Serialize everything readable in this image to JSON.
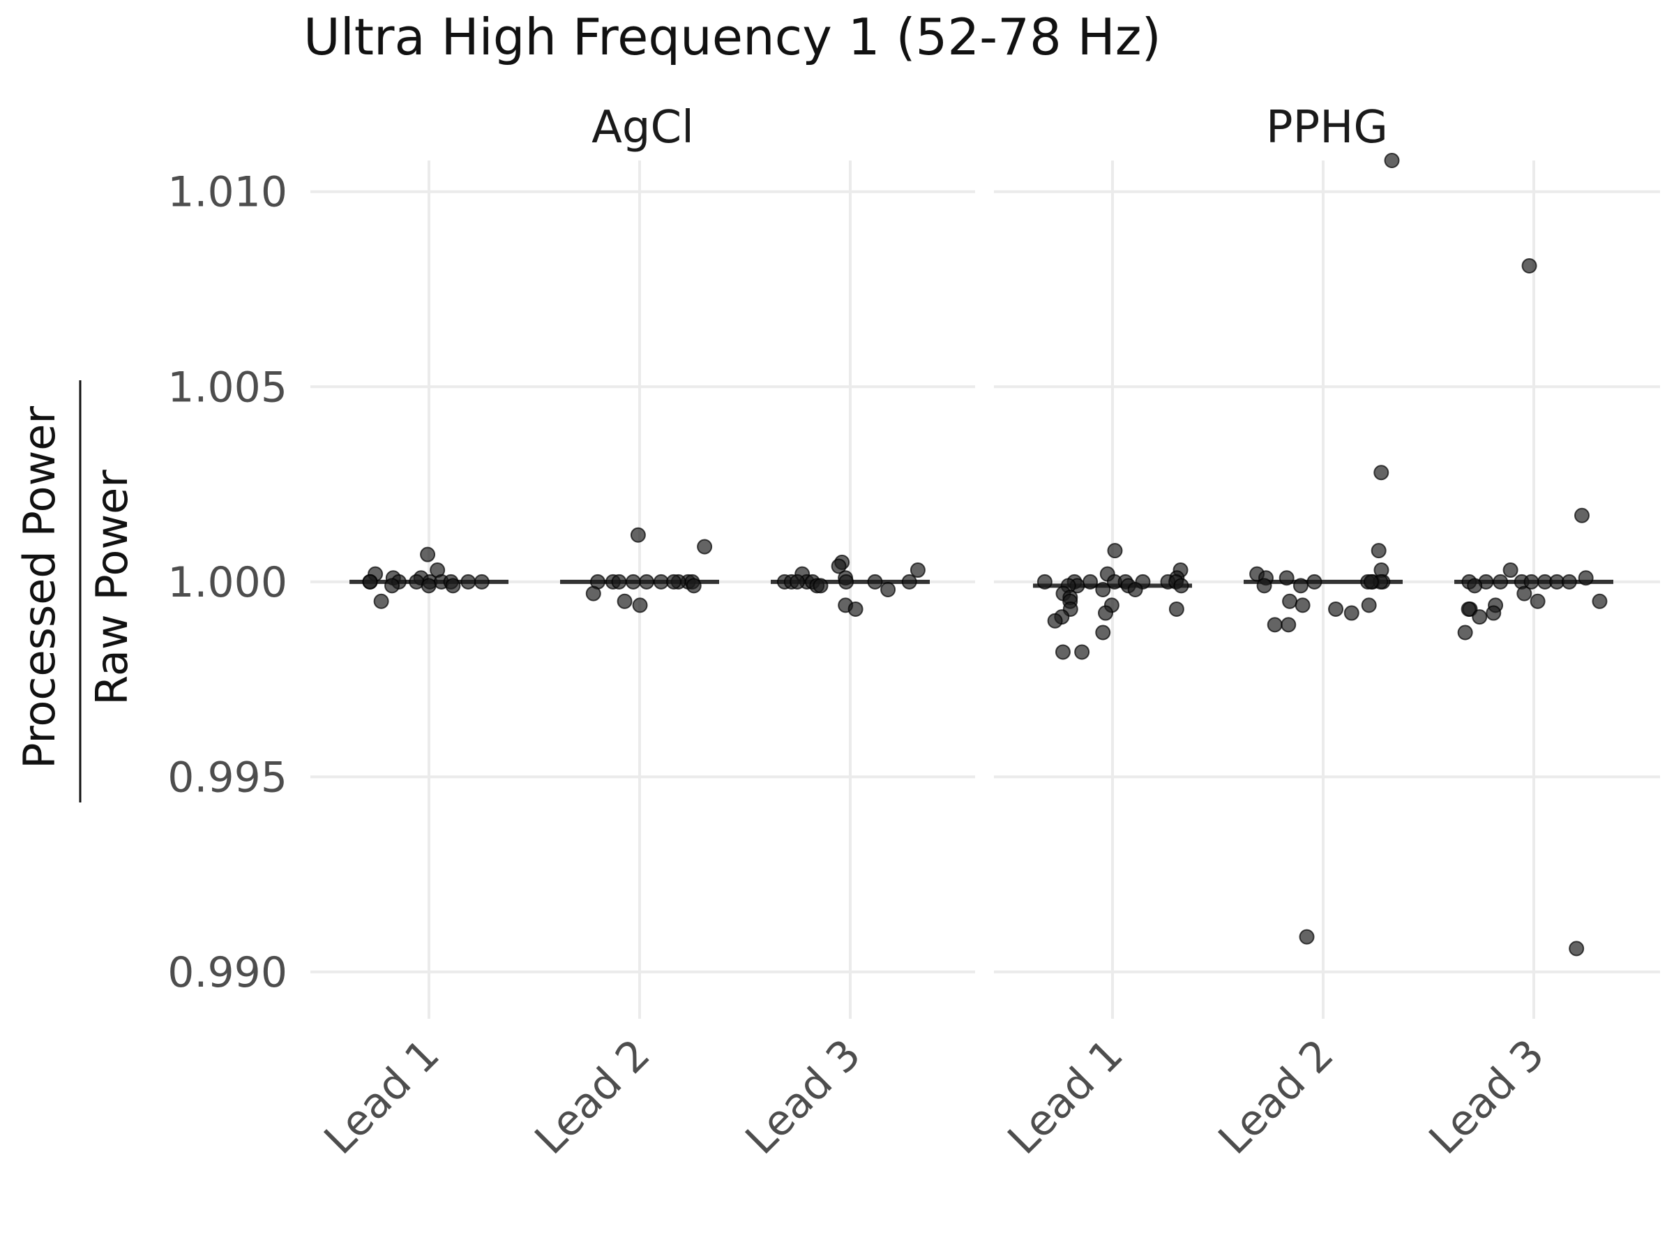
{
  "chart_data": {
    "type": "scatter",
    "title": "Ultra High Frequency 1 (52-78 Hz)",
    "ylabel_numerator": "Processed Power",
    "ylabel_denominator": "Raw Power",
    "ylim": [
      0.9888,
      1.0108
    ],
    "yticks": [
      0.99,
      0.995,
      1.0,
      1.005,
      1.01
    ],
    "ytick_labels": [
      "0.990",
      "0.995",
      "1.000",
      "1.005",
      "1.010"
    ],
    "categories": [
      "Lead 1",
      "Lead 2",
      "Lead 3"
    ],
    "grid": true,
    "panels": [
      {
        "name": "AgCl",
        "groups": [
          {
            "category": "Lead 1",
            "median": 1.0,
            "points": [
              {
                "x": "Lead 1",
                "y": 1.0007
              },
              {
                "x": "Lead 1",
                "y": 1.0003
              },
              {
                "x": "Lead 1",
                "y": 1.0002
              },
              {
                "x": "Lead 1",
                "y": 1.0001
              },
              {
                "x": "Lead 1",
                "y": 1.0001
              },
              {
                "x": "Lead 1",
                "y": 1.0
              },
              {
                "x": "Lead 1",
                "y": 1.0
              },
              {
                "x": "Lead 1",
                "y": 1.0
              },
              {
                "x": "Lead 1",
                "y": 1.0
              },
              {
                "x": "Lead 1",
                "y": 1.0
              },
              {
                "x": "Lead 1",
                "y": 1.0
              },
              {
                "x": "Lead 1",
                "y": 1.0
              },
              {
                "x": "Lead 1",
                "y": 1.0
              },
              {
                "x": "Lead 1",
                "y": 1.0
              },
              {
                "x": "Lead 1",
                "y": 0.9999
              },
              {
                "x": "Lead 1",
                "y": 0.9999
              },
              {
                "x": "Lead 1",
                "y": 0.9999
              },
              {
                "x": "Lead 1",
                "y": 0.9995
              }
            ]
          },
          {
            "category": "Lead 2",
            "median": 1.0,
            "points": [
              {
                "x": "Lead 2",
                "y": 1.0009
              },
              {
                "x": "Lead 2",
                "y": 1.0012
              },
              {
                "x": "Lead 2",
                "y": 1.0
              },
              {
                "x": "Lead 2",
                "y": 1.0
              },
              {
                "x": "Lead 2",
                "y": 1.0
              },
              {
                "x": "Lead 2",
                "y": 1.0
              },
              {
                "x": "Lead 2",
                "y": 1.0
              },
              {
                "x": "Lead 2",
                "y": 1.0
              },
              {
                "x": "Lead 2",
                "y": 1.0
              },
              {
                "x": "Lead 2",
                "y": 1.0
              },
              {
                "x": "Lead 2",
                "y": 1.0
              },
              {
                "x": "Lead 2",
                "y": 1.0
              },
              {
                "x": "Lead 2",
                "y": 0.9999
              },
              {
                "x": "Lead 2",
                "y": 0.9997
              },
              {
                "x": "Lead 2",
                "y": 0.9995
              },
              {
                "x": "Lead 2",
                "y": 0.9994
              }
            ]
          },
          {
            "category": "Lead 3",
            "median": 1.0,
            "points": [
              {
                "x": "Lead 3",
                "y": 1.0005
              },
              {
                "x": "Lead 3",
                "y": 1.0004
              },
              {
                "x": "Lead 3",
                "y": 1.0003
              },
              {
                "x": "Lead 3",
                "y": 1.0002
              },
              {
                "x": "Lead 3",
                "y": 1.0001
              },
              {
                "x": "Lead 3",
                "y": 1.0
              },
              {
                "x": "Lead 3",
                "y": 1.0
              },
              {
                "x": "Lead 3",
                "y": 1.0
              },
              {
                "x": "Lead 3",
                "y": 1.0
              },
              {
                "x": "Lead 3",
                "y": 1.0
              },
              {
                "x": "Lead 3",
                "y": 1.0
              },
              {
                "x": "Lead 3",
                "y": 1.0
              },
              {
                "x": "Lead 3",
                "y": 1.0
              },
              {
                "x": "Lead 3",
                "y": 0.9999
              },
              {
                "x": "Lead 3",
                "y": 0.9999
              },
              {
                "x": "Lead 3",
                "y": 0.9998
              },
              {
                "x": "Lead 3",
                "y": 0.9994
              },
              {
                "x": "Lead 3",
                "y": 0.9993
              }
            ]
          }
        ]
      },
      {
        "name": "PPHG",
        "groups": [
          {
            "category": "Lead 1",
            "median": 0.9999,
            "points": [
              {
                "x": "Lead 1",
                "y": 1.0008
              },
              {
                "x": "Lead 1",
                "y": 1.0003
              },
              {
                "x": "Lead 1",
                "y": 1.0002
              },
              {
                "x": "Lead 1",
                "y": 1.0001
              },
              {
                "x": "Lead 1",
                "y": 1.0
              },
              {
                "x": "Lead 1",
                "y": 1.0
              },
              {
                "x": "Lead 1",
                "y": 1.0
              },
              {
                "x": "Lead 1",
                "y": 1.0
              },
              {
                "x": "Lead 1",
                "y": 1.0
              },
              {
                "x": "Lead 1",
                "y": 1.0
              },
              {
                "x": "Lead 1",
                "y": 1.0
              },
              {
                "x": "Lead 1",
                "y": 1.0
              },
              {
                "x": "Lead 1",
                "y": 0.9999
              },
              {
                "x": "Lead 1",
                "y": 0.9999
              },
              {
                "x": "Lead 1",
                "y": 0.9999
              },
              {
                "x": "Lead 1",
                "y": 0.9999
              },
              {
                "x": "Lead 1",
                "y": 0.9998
              },
              {
                "x": "Lead 1",
                "y": 0.9998
              },
              {
                "x": "Lead 1",
                "y": 0.9997
              },
              {
                "x": "Lead 1",
                "y": 0.9996
              },
              {
                "x": "Lead 1",
                "y": 0.9995
              },
              {
                "x": "Lead 1",
                "y": 0.9994
              },
              {
                "x": "Lead 1",
                "y": 0.9993
              },
              {
                "x": "Lead 1",
                "y": 0.9993
              },
              {
                "x": "Lead 1",
                "y": 0.9992
              },
              {
                "x": "Lead 1",
                "y": 0.9991
              },
              {
                "x": "Lead 1",
                "y": 0.999
              },
              {
                "x": "Lead 1",
                "y": 0.9987
              },
              {
                "x": "Lead 1",
                "y": 0.9982
              },
              {
                "x": "Lead 1",
                "y": 0.9982
              }
            ]
          },
          {
            "category": "Lead 2",
            "median": 1.0,
            "points": [
              {
                "x": "Lead 2",
                "y": 1.0108
              },
              {
                "x": "Lead 2",
                "y": 1.0028
              },
              {
                "x": "Lead 2",
                "y": 1.0008
              },
              {
                "x": "Lead 2",
                "y": 1.0003
              },
              {
                "x": "Lead 2",
                "y": 1.0002
              },
              {
                "x": "Lead 2",
                "y": 1.0001
              },
              {
                "x": "Lead 2",
                "y": 1.0001
              },
              {
                "x": "Lead 2",
                "y": 1.0
              },
              {
                "x": "Lead 2",
                "y": 1.0
              },
              {
                "x": "Lead 2",
                "y": 1.0
              },
              {
                "x": "Lead 2",
                "y": 1.0
              },
              {
                "x": "Lead 2",
                "y": 1.0
              },
              {
                "x": "Lead 2",
                "y": 1.0
              },
              {
                "x": "Lead 2",
                "y": 0.9999
              },
              {
                "x": "Lead 2",
                "y": 0.9999
              },
              {
                "x": "Lead 2",
                "y": 0.9995
              },
              {
                "x": "Lead 2",
                "y": 0.9994
              },
              {
                "x": "Lead 2",
                "y": 0.9994
              },
              {
                "x": "Lead 2",
                "y": 0.9993
              },
              {
                "x": "Lead 2",
                "y": 0.9992
              },
              {
                "x": "Lead 2",
                "y": 0.9989
              },
              {
                "x": "Lead 2",
                "y": 0.9989
              },
              {
                "x": "Lead 2",
                "y": 0.9909
              }
            ]
          },
          {
            "category": "Lead 3",
            "median": 1.0,
            "points": [
              {
                "x": "Lead 3",
                "y": 1.0081
              },
              {
                "x": "Lead 3",
                "y": 1.0017
              },
              {
                "x": "Lead 3",
                "y": 1.0003
              },
              {
                "x": "Lead 3",
                "y": 1.0001
              },
              {
                "x": "Lead 3",
                "y": 1.0
              },
              {
                "x": "Lead 3",
                "y": 1.0
              },
              {
                "x": "Lead 3",
                "y": 1.0
              },
              {
                "x": "Lead 3",
                "y": 1.0
              },
              {
                "x": "Lead 3",
                "y": 1.0
              },
              {
                "x": "Lead 3",
                "y": 1.0
              },
              {
                "x": "Lead 3",
                "y": 1.0
              },
              {
                "x": "Lead 3",
                "y": 1.0
              },
              {
                "x": "Lead 3",
                "y": 0.9999
              },
              {
                "x": "Lead 3",
                "y": 0.9997
              },
              {
                "x": "Lead 3",
                "y": 0.9995
              },
              {
                "x": "Lead 3",
                "y": 0.9995
              },
              {
                "x": "Lead 3",
                "y": 0.9994
              },
              {
                "x": "Lead 3",
                "y": 0.9993
              },
              {
                "x": "Lead 3",
                "y": 0.9993
              },
              {
                "x": "Lead 3",
                "y": 0.9992
              },
              {
                "x": "Lead 3",
                "y": 0.9991
              },
              {
                "x": "Lead 3",
                "y": 0.9987
              },
              {
                "x": "Lead 3",
                "y": 0.9906
              }
            ]
          }
        ]
      }
    ]
  }
}
